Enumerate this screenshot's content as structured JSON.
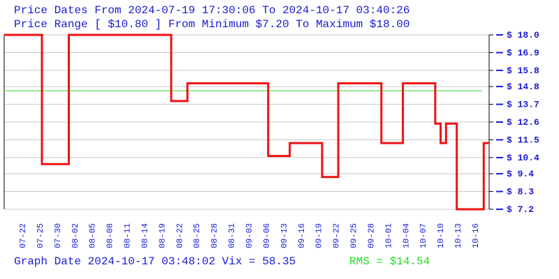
{
  "header": {
    "line1": "Price Dates From 2024-07-19 17:30:06 To 2024-10-17 03:40:26",
    "line2": "Price Range [ $10.80 ] From Minimum $7.20 To Maximum $18.00"
  },
  "footer": {
    "graph_info": "Graph Date 2024-10-17 03:48:02 Vix = 58.35",
    "rms": "RMS = $14.54"
  },
  "colors": {
    "text": "#1a1ad4",
    "price_line": "#ee1111",
    "rms_line": "#22dd22",
    "grid": "#c8c8c8"
  },
  "chart_data": {
    "type": "line",
    "step": true,
    "x_range": [
      "2024-07-19",
      "2024-10-17"
    ],
    "ylim": [
      7.2,
      18.0
    ],
    "grid": true,
    "y_ticks": [
      "$ 18.0",
      "$ 16.9",
      "$ 15.8",
      "$ 14.8",
      "$ 13.7",
      "$ 12.6",
      "$ 11.5",
      "$ 10.4",
      "$ 9.4",
      "$ 8.3",
      "$ 7.2"
    ],
    "y_tick_values": [
      18.0,
      16.9,
      15.8,
      14.8,
      13.7,
      12.6,
      11.5,
      10.4,
      9.4,
      8.3,
      7.2
    ],
    "x_ticks": [
      "07-22",
      "07-25",
      "07-30",
      "08-02",
      "08-05",
      "08-08",
      "08-11",
      "08-14",
      "08-19",
      "08-22",
      "08-25",
      "08-28",
      "08-31",
      "09-03",
      "09-06",
      "09-13",
      "09-16",
      "09-19",
      "09-22",
      "09-25",
      "09-28",
      "10-01",
      "10-04",
      "10-07",
      "10-10",
      "10-13",
      "10-16"
    ],
    "rms": 14.54,
    "series": [
      {
        "points": [
          {
            "x": "2024-07-19",
            "y": 18.0
          },
          {
            "x": "2024-07-26",
            "y": 10.0
          },
          {
            "x": "2024-07-31",
            "y": 18.0
          },
          {
            "x": "2024-08-19",
            "y": 13.9
          },
          {
            "x": "2024-08-22",
            "y": 15.0
          },
          {
            "x": "2024-09-06",
            "y": 10.5
          },
          {
            "x": "2024-09-10",
            "y": 11.3
          },
          {
            "x": "2024-09-16",
            "y": 9.2
          },
          {
            "x": "2024-09-19",
            "y": 15.0
          },
          {
            "x": "2024-09-27",
            "y": 11.3
          },
          {
            "x": "2024-10-01",
            "y": 15.0
          },
          {
            "x": "2024-10-07",
            "y": 12.5
          },
          {
            "x": "2024-10-08",
            "y": 11.3
          },
          {
            "x": "2024-10-09",
            "y": 12.5
          },
          {
            "x": "2024-10-11",
            "y": 7.2
          },
          {
            "x": "2024-10-16",
            "y": 11.3
          },
          {
            "x": "2024-10-17",
            "y": 11.3
          }
        ]
      }
    ]
  }
}
